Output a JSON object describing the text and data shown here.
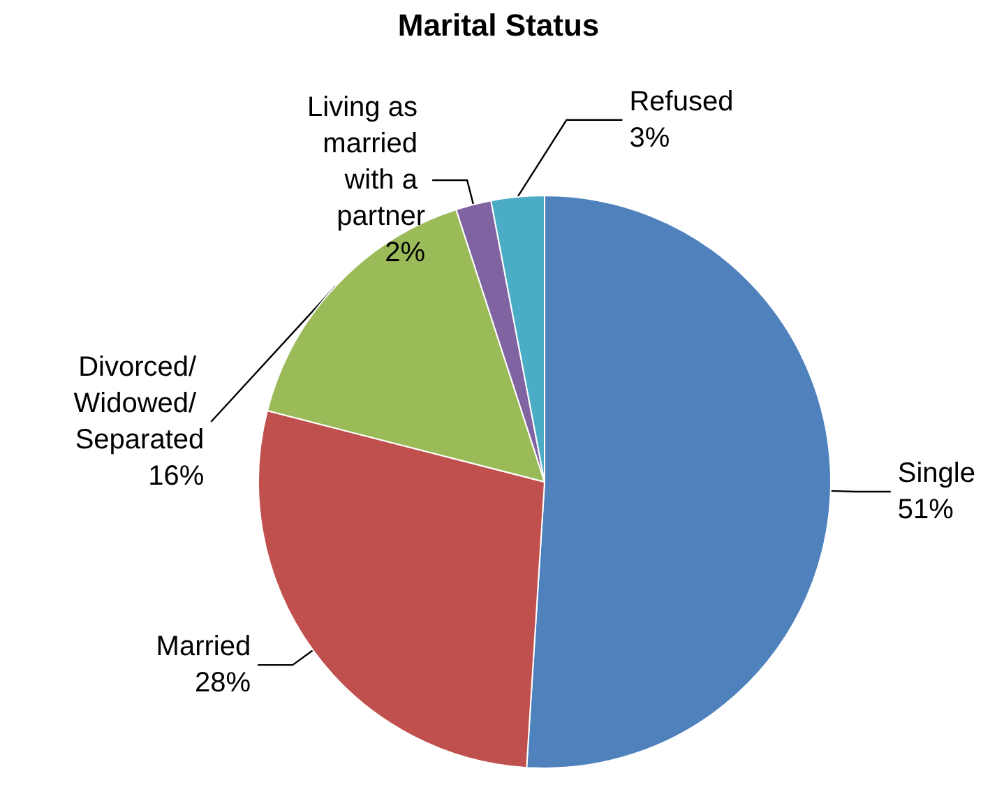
{
  "chart_data": {
    "type": "pie",
    "title": "Marital Status",
    "categories": [
      "Single",
      "Married",
      "Divorced/ Widowed/ Separated",
      "Living as married with a partner",
      "Refused"
    ],
    "values": [
      51,
      28,
      16,
      2,
      3
    ],
    "value_labels": [
      "51%",
      "28%",
      "16%",
      "2%",
      "3%"
    ],
    "colors": [
      "#4f81bd",
      "#c0504d",
      "#9bbb59",
      "#8064a2",
      "#4bacc6"
    ],
    "legend": false
  }
}
